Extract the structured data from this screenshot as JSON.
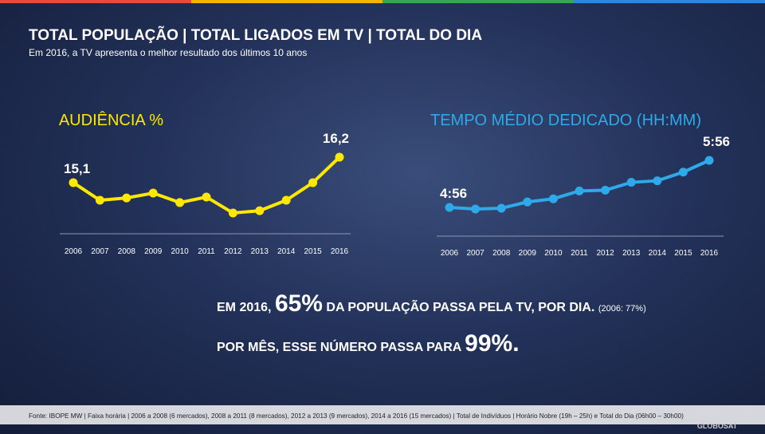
{
  "header": {
    "title": "TOTAL POPULAÇÃO | TOTAL LIGADOS EM TV | TOTAL DO DIA",
    "subtitle": "Em 2016, a TV apresenta o melhor resultado dos últimos 10 anos"
  },
  "chart_data": [
    {
      "type": "line",
      "title": "AUDIÊNCIA %",
      "categories": [
        "2006",
        "2007",
        "2008",
        "2009",
        "2010",
        "2011",
        "2012",
        "2013",
        "2014",
        "2015",
        "2016"
      ],
      "series": [
        {
          "name": "AUDIÊNCIA %",
          "color": "#ffe800",
          "values": [
            15.1,
            14.34,
            14.44,
            14.65,
            14.24,
            14.48,
            13.79,
            13.89,
            14.34,
            15.1,
            16.2
          ],
          "value_labels": [
            "15,1",
            null,
            null,
            null,
            null,
            null,
            null,
            null,
            null,
            null,
            "16,2"
          ]
        }
      ]
    },
    {
      "type": "line",
      "title": "TEMPO MÉDIO DEDICADO (HH:MM)",
      "categories": [
        "2006",
        "2007",
        "2008",
        "2009",
        "2010",
        "2011",
        "2012",
        "2013",
        "2014",
        "2015",
        "2016"
      ],
      "series": [
        {
          "name": "TEMPO MÉDIO DEDICADO (HH:MM)",
          "color": "#2ea9ea",
          "values": [
            296,
            294,
            295,
            303,
            307,
            317,
            318,
            328,
            330,
            341,
            356
          ],
          "value_labels": [
            "4:56",
            null,
            null,
            null,
            null,
            null,
            null,
            null,
            null,
            null,
            "5:56"
          ]
        }
      ]
    }
  ],
  "headline": {
    "line1": [
      "EM 2016, ",
      "65%",
      " DA POPULAÇÃO PASSA PELA TV, POR DIA.",
      "(2006: 77%)"
    ],
    "line2": [
      "POR MÊS, ESSE NÚMERO PASSA PARA ",
      "99%."
    ]
  },
  "footer": {
    "source": "Fonte: IBOPE MW | Faixa horária | 2006 a 2008 (6 mercados), 2008 a 2011 (8 mercados), 2012 a 2013 (9 mercados), 2014 a 2016 (15 mercados) | Total de Indivíduos | Horário Nobre (19h – 25h) e Total do Dia (06h00 – 30h00)",
    "logo": "GLOBOSAT"
  }
}
